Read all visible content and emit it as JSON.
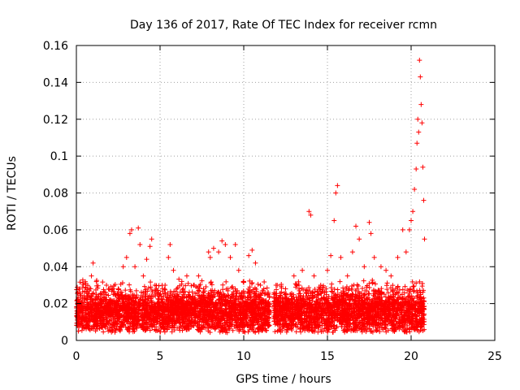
{
  "chart_data": {
    "type": "scatter",
    "title": "Day 136 of 2017, Rate Of TEC Index for receiver rcmn",
    "xlabel": "GPS time / hours",
    "ylabel": "ROTI / TECUs",
    "xlim": [
      0,
      25
    ],
    "ylim": [
      0,
      0.16
    ],
    "x_ticks": [
      "0",
      "5",
      "10",
      "15",
      "20",
      "25"
    ],
    "y_ticks": [
      "0",
      "0.02",
      "0.04",
      "0.06",
      "0.08",
      "0.1",
      "0.12",
      "0.14",
      "0.16"
    ],
    "grid": true,
    "marker": "+",
    "color": "#ff0000",
    "data_range_x": [
      0,
      20.8
    ],
    "series": [
      {
        "points": [
          [
            0.1,
            0.015
          ],
          [
            0.2,
            0.028
          ],
          [
            0.3,
            0.012
          ],
          [
            0.5,
            0.022
          ],
          [
            0.7,
            0.018
          ],
          [
            0.9,
            0.035
          ],
          [
            1.0,
            0.042
          ],
          [
            1.2,
            0.025
          ],
          [
            1.5,
            0.02
          ],
          [
            1.8,
            0.03
          ],
          [
            2.0,
            0.015
          ],
          [
            2.2,
            0.025
          ],
          [
            2.5,
            0.028
          ],
          [
            2.8,
            0.04
          ],
          [
            3.0,
            0.045
          ],
          [
            3.2,
            0.058
          ],
          [
            3.3,
            0.06
          ],
          [
            3.5,
            0.04
          ],
          [
            3.7,
            0.061
          ],
          [
            3.8,
            0.052
          ],
          [
            4.0,
            0.035
          ],
          [
            4.2,
            0.044
          ],
          [
            4.4,
            0.051
          ],
          [
            4.5,
            0.055
          ],
          [
            4.7,
            0.03
          ],
          [
            5.0,
            0.025
          ],
          [
            5.3,
            0.03
          ],
          [
            5.5,
            0.045
          ],
          [
            5.6,
            0.052
          ],
          [
            5.8,
            0.038
          ],
          [
            6.0,
            0.028
          ],
          [
            6.3,
            0.032
          ],
          [
            6.6,
            0.035
          ],
          [
            7.0,
            0.03
          ],
          [
            7.3,
            0.035
          ],
          [
            7.6,
            0.028
          ],
          [
            7.9,
            0.048
          ],
          [
            8.0,
            0.045
          ],
          [
            8.2,
            0.05
          ],
          [
            8.5,
            0.048
          ],
          [
            8.7,
            0.054
          ],
          [
            8.9,
            0.052
          ],
          [
            9.2,
            0.045
          ],
          [
            9.5,
            0.052
          ],
          [
            9.7,
            0.038
          ],
          [
            10.0,
            0.032
          ],
          [
            10.3,
            0.046
          ],
          [
            10.5,
            0.049
          ],
          [
            10.7,
            0.042
          ],
          [
            11.0,
            0.03
          ],
          [
            11.2,
            0.028
          ],
          [
            11.5,
            0.02
          ],
          [
            11.8,
            0.025
          ],
          [
            12.0,
            0.03
          ],
          [
            12.5,
            0.028
          ],
          [
            13.0,
            0.035
          ],
          [
            13.3,
            0.03
          ],
          [
            13.5,
            0.038
          ],
          [
            13.9,
            0.07
          ],
          [
            14.0,
            0.068
          ],
          [
            14.2,
            0.035
          ],
          [
            14.6,
            0.03
          ],
          [
            15.0,
            0.038
          ],
          [
            15.2,
            0.046
          ],
          [
            15.4,
            0.065
          ],
          [
            15.5,
            0.08
          ],
          [
            15.6,
            0.084
          ],
          [
            15.8,
            0.045
          ],
          [
            16.2,
            0.035
          ],
          [
            16.5,
            0.048
          ],
          [
            16.7,
            0.062
          ],
          [
            16.9,
            0.055
          ],
          [
            17.2,
            0.04
          ],
          [
            17.5,
            0.064
          ],
          [
            17.6,
            0.058
          ],
          [
            17.8,
            0.045
          ],
          [
            18.2,
            0.04
          ],
          [
            18.5,
            0.038
          ],
          [
            18.8,
            0.035
          ],
          [
            19.2,
            0.045
          ],
          [
            19.5,
            0.06
          ],
          [
            19.7,
            0.048
          ],
          [
            19.9,
            0.06
          ],
          [
            20.0,
            0.065
          ],
          [
            20.1,
            0.07
          ],
          [
            20.2,
            0.082
          ],
          [
            20.3,
            0.093
          ],
          [
            20.35,
            0.107
          ],
          [
            20.4,
            0.12
          ],
          [
            20.45,
            0.113
          ],
          [
            20.5,
            0.152
          ],
          [
            20.55,
            0.143
          ],
          [
            20.6,
            0.128
          ],
          [
            20.65,
            0.118
          ],
          [
            20.7,
            0.094
          ],
          [
            20.75,
            0.076
          ],
          [
            20.8,
            0.055
          ]
        ]
      }
    ]
  }
}
